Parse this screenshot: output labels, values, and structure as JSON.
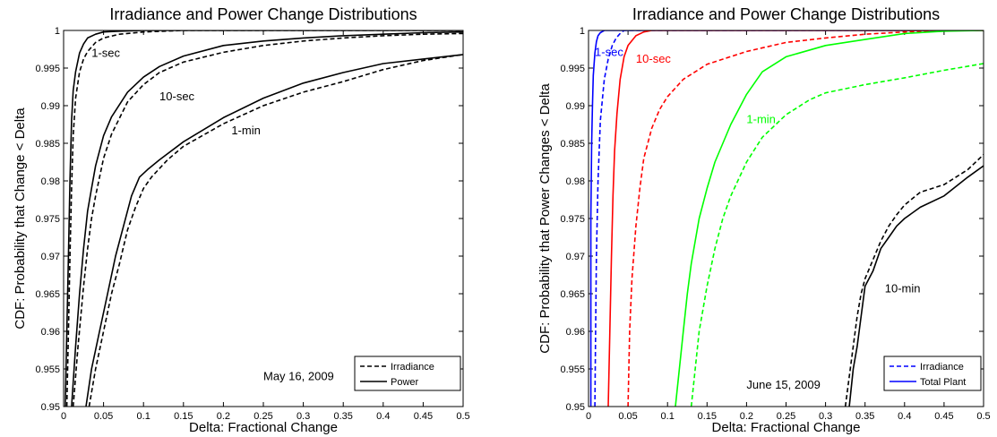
{
  "chart_data": [
    {
      "type": "line",
      "title": "Irradiance and Power Change Distributions",
      "xlabel": "Delta: Fractional Change",
      "ylabel": "CDF: Probability that Change < Delta",
      "xlim": [
        0,
        0.5
      ],
      "ylim": [
        0.95,
        1
      ],
      "xticks": [
        "0",
        "0.05",
        "0.1",
        "0.15",
        "0.2",
        "0.25",
        "0.3",
        "0.35",
        "0.4",
        "0.45",
        "0.5"
      ],
      "yticks": [
        "0.95",
        "0.955",
        "0.96",
        "0.965",
        "0.97",
        "0.975",
        "0.98",
        "0.985",
        "0.99",
        "0.995",
        "1"
      ],
      "grid": false,
      "legend_position": "bottom-right",
      "legend": [
        {
          "label": "Irradiance",
          "style": "dashed",
          "color": "#000000"
        },
        {
          "label": "Power",
          "style": "solid",
          "color": "#000000"
        }
      ],
      "annotations": [
        {
          "text": "1-sec",
          "x": 0.035,
          "y": 0.9965,
          "color": "#000000"
        },
        {
          "text": "10-sec",
          "x": 0.12,
          "y": 0.9907,
          "color": "#000000"
        },
        {
          "text": "1-min",
          "x": 0.21,
          "y": 0.9862,
          "color": "#000000"
        },
        {
          "text": "May 16, 2009",
          "x": 0.25,
          "y": 0.9535,
          "color": "#000000"
        }
      ],
      "series": [
        {
          "timescale": "1-sec",
          "kind": "Power",
          "style": "solid",
          "color": "#000000",
          "x": [
            0.002,
            0.004,
            0.006,
            0.008,
            0.01,
            0.012,
            0.015,
            0.02,
            0.025,
            0.03,
            0.04,
            0.05,
            0.07,
            0.1,
            0.5
          ],
          "y": [
            0.95,
            0.96,
            0.97,
            0.98,
            0.988,
            0.992,
            0.9945,
            0.997,
            0.9982,
            0.999,
            0.9995,
            0.9998,
            0.9999,
            1,
            1
          ]
        },
        {
          "timescale": "1-sec",
          "kind": "Irradiance",
          "style": "dashed",
          "color": "#000000",
          "x": [
            0.004,
            0.006,
            0.008,
            0.01,
            0.012,
            0.015,
            0.02,
            0.025,
            0.03,
            0.04,
            0.05,
            0.07,
            0.1,
            0.15,
            0.5
          ],
          "y": [
            0.95,
            0.96,
            0.97,
            0.979,
            0.986,
            0.991,
            0.9945,
            0.9962,
            0.9972,
            0.9984,
            0.999,
            0.9995,
            0.9998,
            1,
            1
          ]
        },
        {
          "timescale": "10-sec",
          "kind": "Power",
          "style": "solid",
          "color": "#000000",
          "x": [
            0.01,
            0.015,
            0.02,
            0.025,
            0.03,
            0.035,
            0.04,
            0.05,
            0.06,
            0.08,
            0.1,
            0.12,
            0.15,
            0.2,
            0.25,
            0.3,
            0.35,
            0.4,
            0.45,
            0.5
          ],
          "y": [
            0.95,
            0.958,
            0.965,
            0.971,
            0.976,
            0.979,
            0.982,
            0.986,
            0.9885,
            0.9918,
            0.9938,
            0.9952,
            0.9966,
            0.998,
            0.9986,
            0.999,
            0.9993,
            0.9995,
            0.9997,
            0.9998
          ]
        },
        {
          "timescale": "10-sec",
          "kind": "Irradiance",
          "style": "dashed",
          "color": "#000000",
          "x": [
            0.012,
            0.018,
            0.025,
            0.03,
            0.035,
            0.04,
            0.05,
            0.06,
            0.08,
            0.1,
            0.12,
            0.15,
            0.2,
            0.25,
            0.3,
            0.35,
            0.4,
            0.45,
            0.5
          ],
          "y": [
            0.95,
            0.958,
            0.966,
            0.971,
            0.975,
            0.978,
            0.983,
            0.9862,
            0.9905,
            0.9928,
            0.9944,
            0.9958,
            0.9971,
            0.998,
            0.9986,
            0.999,
            0.9993,
            0.9995,
            0.9996
          ]
        },
        {
          "timescale": "1-min",
          "kind": "Power",
          "style": "solid",
          "color": "#000000",
          "x": [
            0.028,
            0.035,
            0.045,
            0.055,
            0.065,
            0.075,
            0.085,
            0.095,
            0.105,
            0.12,
            0.15,
            0.2,
            0.25,
            0.3,
            0.35,
            0.4,
            0.45,
            0.5
          ],
          "y": [
            0.95,
            0.955,
            0.96,
            0.965,
            0.97,
            0.974,
            0.978,
            0.9805,
            0.9815,
            0.9828,
            0.9852,
            0.9884,
            0.991,
            0.993,
            0.9944,
            0.9956,
            0.9962,
            0.9968
          ]
        },
        {
          "timescale": "1-min",
          "kind": "Irradiance",
          "style": "dashed",
          "color": "#000000",
          "x": [
            0.032,
            0.04,
            0.05,
            0.06,
            0.07,
            0.08,
            0.09,
            0.1,
            0.11,
            0.13,
            0.15,
            0.2,
            0.25,
            0.3,
            0.35,
            0.4,
            0.45,
            0.5
          ],
          "y": [
            0.95,
            0.955,
            0.96,
            0.965,
            0.969,
            0.9735,
            0.9765,
            0.979,
            0.9805,
            0.9828,
            0.9846,
            0.9876,
            0.99,
            0.9918,
            0.9932,
            0.9948,
            0.996,
            0.9968
          ]
        }
      ]
    },
    {
      "type": "line",
      "title": "Irradiance and Power Change Distributions",
      "xlabel": "Delta: Fractional Change",
      "ylabel": "CDF: Probability that Power Changes < Delta",
      "xlim": [
        0,
        0.5
      ],
      "ylim": [
        0.95,
        1
      ],
      "xticks": [
        "0",
        "0.05",
        "0.1",
        "0.15",
        "0.2",
        "0.25",
        "0.3",
        "0.35",
        "0.4",
        "0.45",
        "0.5"
      ],
      "yticks": [
        "0.95",
        "0.955",
        "0.96",
        "0.965",
        "0.97",
        "0.975",
        "0.98",
        "0.985",
        "0.99",
        "0.995",
        "1"
      ],
      "grid": false,
      "legend_position": "bottom-right",
      "legend": [
        {
          "label": "Irradiance",
          "style": "dashed",
          "color": "#0000ff"
        },
        {
          "label": "Total Plant",
          "style": "solid",
          "color": "#0000ff"
        }
      ],
      "annotations": [
        {
          "text": "1-sec",
          "x": 0.008,
          "y": 0.9966,
          "color": "#0000ff"
        },
        {
          "text": "10-sec",
          "x": 0.06,
          "y": 0.9957,
          "color": "#ff0000"
        },
        {
          "text": "1-min",
          "x": 0.2,
          "y": 0.9877,
          "color": "#00ff00"
        },
        {
          "text": "10-min",
          "x": 0.375,
          "y": 0.9652,
          "color": "#000000"
        },
        {
          "text": "June 15, 2009",
          "x": 0.2,
          "y": 0.9524,
          "color": "#000000"
        }
      ],
      "series": [
        {
          "timescale": "1-sec",
          "kind": "Total Plant",
          "style": "solid",
          "color": "#0000ff",
          "x": [
            0.003,
            0.003,
            0.004,
            0.005,
            0.006,
            0.008,
            0.01,
            0.012,
            0.015,
            0.02,
            0.5
          ],
          "y": [
            0.95,
            0.975,
            0.985,
            0.99,
            0.994,
            0.997,
            0.9985,
            0.9993,
            0.9997,
            1,
            1
          ]
        },
        {
          "timescale": "1-sec",
          "kind": "Irradiance",
          "style": "dashed",
          "color": "#0000ff",
          "x": [
            0.008,
            0.009,
            0.01,
            0.012,
            0.015,
            0.02,
            0.025,
            0.03,
            0.035,
            0.04,
            0.045,
            0.5
          ],
          "y": [
            0.95,
            0.96,
            0.97,
            0.98,
            0.988,
            0.9935,
            0.9962,
            0.998,
            0.999,
            0.9996,
            1,
            1
          ]
        },
        {
          "timescale": "10-sec",
          "kind": "Total Plant",
          "style": "solid",
          "color": "#ff0000",
          "x": [
            0.025,
            0.027,
            0.029,
            0.031,
            0.033,
            0.036,
            0.04,
            0.045,
            0.05,
            0.06,
            0.07,
            0.08,
            0.5
          ],
          "y": [
            0.95,
            0.96,
            0.97,
            0.978,
            0.984,
            0.989,
            0.9935,
            0.9965,
            0.998,
            0.9993,
            0.9998,
            1,
            1
          ]
        },
        {
          "timescale": "10-sec",
          "kind": "Irradiance",
          "style": "dashed",
          "color": "#ff0000",
          "x": [
            0.05,
            0.052,
            0.055,
            0.06,
            0.065,
            0.07,
            0.08,
            0.09,
            0.1,
            0.12,
            0.15,
            0.2,
            0.25,
            0.3,
            0.35,
            0.4,
            0.45,
            0.5
          ],
          "y": [
            0.95,
            0.96,
            0.967,
            0.974,
            0.979,
            0.983,
            0.987,
            0.9895,
            0.9912,
            0.9935,
            0.9955,
            0.9972,
            0.9984,
            0.999,
            0.9995,
            0.9998,
            1,
            1
          ]
        },
        {
          "timescale": "1-min",
          "kind": "Total Plant",
          "style": "solid",
          "color": "#00ff00",
          "x": [
            0.11,
            0.115,
            0.12,
            0.125,
            0.13,
            0.14,
            0.15,
            0.16,
            0.18,
            0.2,
            0.22,
            0.25,
            0.3,
            0.35,
            0.4,
            0.45,
            0.5
          ],
          "y": [
            0.95,
            0.955,
            0.96,
            0.965,
            0.969,
            0.975,
            0.979,
            0.9825,
            0.9875,
            0.9915,
            0.9945,
            0.9965,
            0.998,
            0.9988,
            0.9996,
            0.9999,
            1
          ]
        },
        {
          "timescale": "1-min",
          "kind": "Irradiance",
          "style": "dashed",
          "color": "#00ff00",
          "x": [
            0.13,
            0.135,
            0.14,
            0.15,
            0.16,
            0.17,
            0.18,
            0.2,
            0.22,
            0.25,
            0.28,
            0.3,
            0.35,
            0.4,
            0.45,
            0.5
          ],
          "y": [
            0.95,
            0.955,
            0.96,
            0.966,
            0.971,
            0.975,
            0.978,
            0.9825,
            0.9858,
            0.9888,
            0.9908,
            0.9917,
            0.9928,
            0.9937,
            0.9947,
            0.9956
          ]
        },
        {
          "timescale": "10-min",
          "kind": "Total Plant",
          "style": "solid",
          "color": "#000000",
          "x": [
            0.33,
            0.335,
            0.34,
            0.345,
            0.35,
            0.36,
            0.37,
            0.38,
            0.39,
            0.4,
            0.42,
            0.45,
            0.48,
            0.5
          ],
          "y": [
            0.95,
            0.955,
            0.958,
            0.962,
            0.966,
            0.968,
            0.971,
            0.9725,
            0.974,
            0.975,
            0.9765,
            0.978,
            0.9805,
            0.982
          ]
        },
        {
          "timescale": "10-min",
          "kind": "Irradiance",
          "style": "dashed",
          "color": "#000000",
          "x": [
            0.325,
            0.33,
            0.335,
            0.34,
            0.345,
            0.35,
            0.36,
            0.37,
            0.38,
            0.39,
            0.4,
            0.42,
            0.45,
            0.48,
            0.5
          ],
          "y": [
            0.95,
            0.954,
            0.958,
            0.962,
            0.965,
            0.967,
            0.9695,
            0.972,
            0.974,
            0.9755,
            0.9768,
            0.9785,
            0.9795,
            0.9815,
            0.9835
          ]
        }
      ]
    }
  ]
}
